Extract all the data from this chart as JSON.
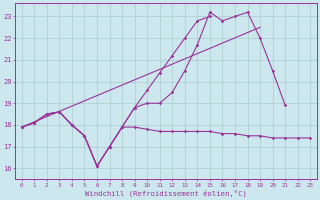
{
  "background_color": "#cce8ee",
  "grid_color": "#aacccc",
  "line_color": "#993399",
  "xlabel": "Windchill (Refroidissement éolien,°C)",
  "xlabel_color": "#993399",
  "ylabel_ticks": [
    16,
    17,
    18,
    19,
    20,
    21,
    22,
    23
  ],
  "xlim": [
    -0.5,
    23.5
  ],
  "ylim": [
    15.5,
    23.6
  ],
  "xtick_labels": [
    "0",
    "1",
    "2",
    "3",
    "4",
    "5",
    "6",
    "7",
    "8",
    "9",
    "10",
    "11",
    "12",
    "13",
    "14",
    "15",
    "16",
    "17",
    "18",
    "19",
    "20",
    "21",
    "22",
    "23"
  ],
  "line1_y": [
    17.9,
    18.1,
    18.5,
    18.6,
    18.0,
    17.5,
    16.1,
    17.0,
    17.9,
    17.9,
    17.8,
    17.7,
    17.7,
    17.7,
    17.7,
    17.7,
    17.6,
    17.6,
    17.5,
    17.5,
    17.4,
    17.4,
    17.4,
    17.4
  ],
  "line2_y": [
    17.9,
    18.1,
    18.5,
    18.6,
    18.0,
    17.5,
    16.1,
    17.0,
    17.9,
    18.8,
    19.0,
    19.0,
    19.5,
    20.5,
    21.7,
    23.2,
    22.8,
    23.0,
    23.2,
    22.0,
    20.5,
    18.9,
    null,
    null
  ],
  "line3_y": [
    17.9,
    18.1,
    18.5,
    18.6,
    18.0,
    17.5,
    16.1,
    17.0,
    17.9,
    18.8,
    19.6,
    20.4,
    21.2,
    22.0,
    22.8,
    23.0,
    null,
    null,
    null,
    null,
    null,
    null,
    null,
    null
  ],
  "line4_x": [
    0,
    19
  ],
  "line4_y": [
    17.9,
    22.5
  ]
}
